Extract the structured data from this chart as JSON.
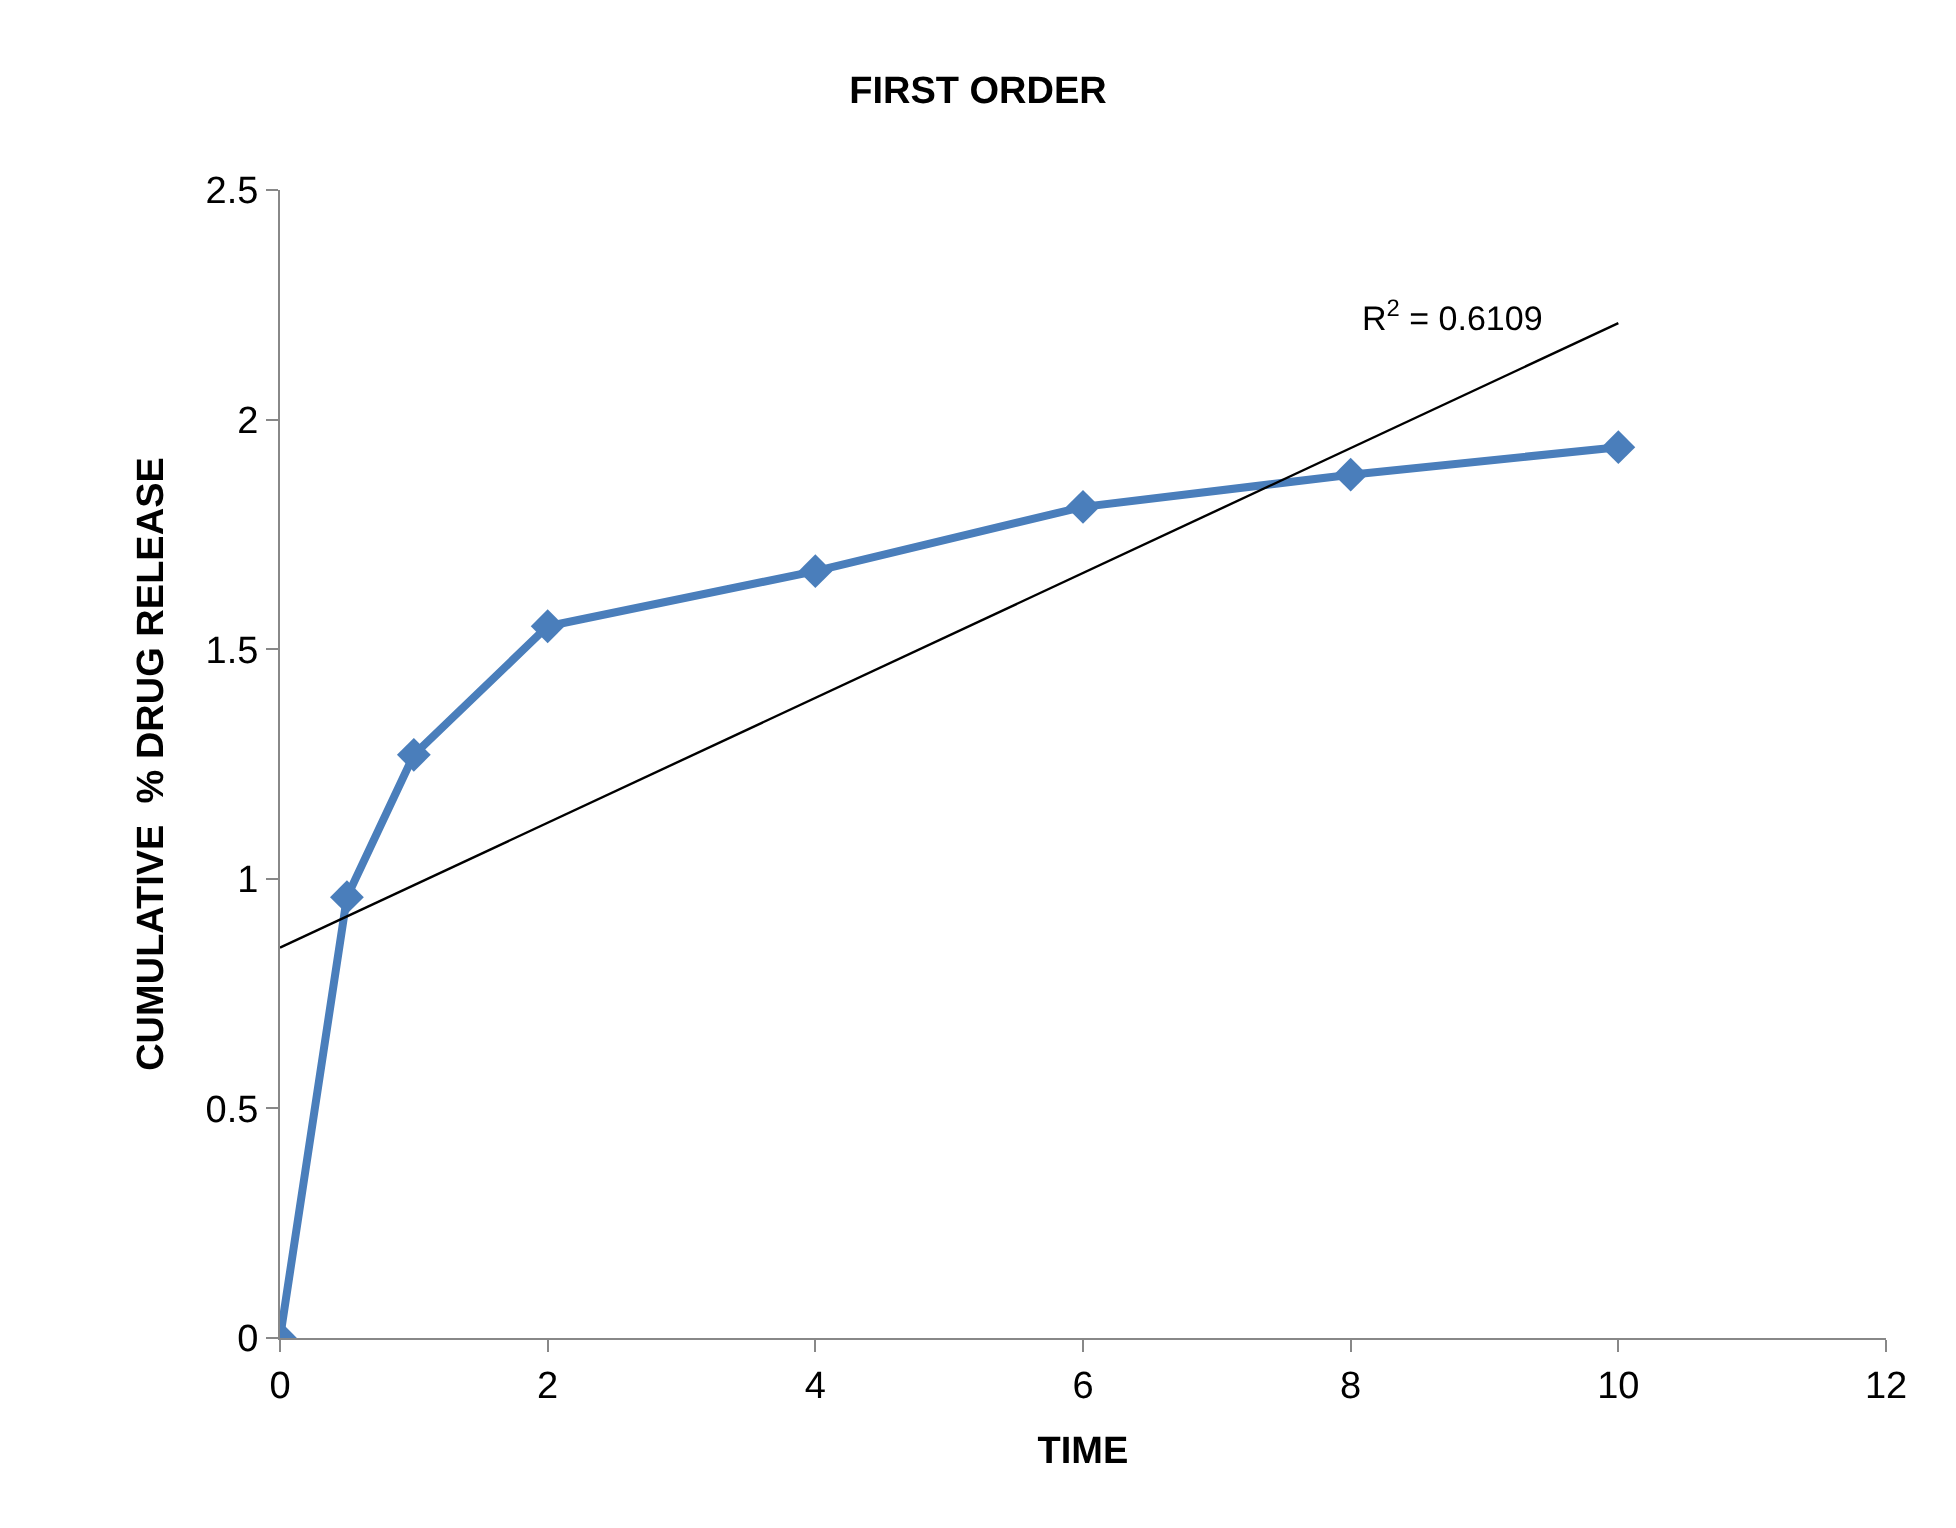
{
  "chart_data": {
    "type": "line",
    "title": "FIRST ORDER",
    "xlabel": "TIME",
    "ylabel": "CUMULATIVE  % DRUG RELEASE",
    "x": [
      0,
      0.5,
      1,
      2,
      4,
      6,
      8,
      10
    ],
    "series": [
      {
        "color": "#4a7ebb",
        "values": [
          0,
          0.96,
          1.27,
          1.55,
          1.67,
          1.81,
          1.88,
          1.94
        ],
        "marker": "diamond"
      },
      {
        "type": "line",
        "color": "#000000",
        "x": [
          0,
          10
        ],
        "values": [
          0.85,
          2.21
        ],
        "marker": "none"
      }
    ],
    "annotations": [
      "R$^{2}$ = 0.6109"
    ],
    "xlim": [
      0,
      12
    ],
    "xticks": [
      0,
      2,
      4,
      6,
      8,
      10,
      12
    ],
    "ylim": [
      0,
      2.5
    ],
    "yticks": [
      0,
      0.5,
      1,
      1.5,
      2,
      2.5
    ],
    "tick_labels": "xy"
  }
}
